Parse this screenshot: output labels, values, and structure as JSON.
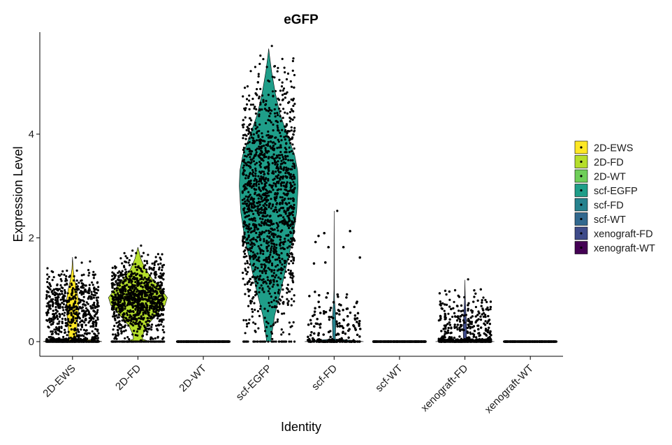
{
  "chart_data": {
    "type": "violin",
    "title": "eGFP",
    "xlabel": "Identity",
    "ylabel": "Expression Level",
    "ylim": [
      -0.28,
      5.9
    ],
    "yticks": [
      0,
      2,
      4
    ],
    "grid": false,
    "legend_position": "right",
    "categories": [
      "2D-EWS",
      "2D-FD",
      "2D-WT",
      "scf-EGFP",
      "scf-FD",
      "scf-WT",
      "xenograft-FD",
      "xenograft-WT"
    ],
    "series": [
      {
        "name": "2D-EWS",
        "color": "#FDE725",
        "max": 1.63,
        "jitter_max": 1.62,
        "zero_fraction": 0.4,
        "violin": {
          "y": [
            0,
            0.02,
            0.06,
            0.2,
            0.4,
            0.6,
            0.8,
            1.0,
            1.2,
            1.4,
            1.63
          ],
          "w": [
            1.0,
            0.85,
            0.12,
            0.14,
            0.17,
            0.2,
            0.2,
            0.15,
            0.07,
            0.02,
            0
          ]
        }
      },
      {
        "name": "2D-FD",
        "color": "#B5DE2B",
        "max": 1.82,
        "jitter_max": 1.85,
        "zero_fraction": 0.12,
        "violin": {
          "y": [
            0,
            0.02,
            0.05,
            0.15,
            0.3,
            0.5,
            0.7,
            0.85,
            1.0,
            1.2,
            1.4,
            1.6,
            1.82
          ],
          "w": [
            0.4,
            0.3,
            0.15,
            0.18,
            0.3,
            0.6,
            0.92,
            1.0,
            0.8,
            0.5,
            0.25,
            0.1,
            0
          ]
        }
      },
      {
        "name": "2D-WT",
        "color": "#6ECE58",
        "max": 0,
        "jitter_max": 0,
        "zero_fraction": 1.0,
        "violin": {
          "y": [
            0,
            0.004
          ],
          "w": [
            0.1,
            0
          ]
        }
      },
      {
        "name": "scf-EGFP",
        "color": "#1F9E89",
        "max": 5.65,
        "jitter_max": 5.7,
        "zero_fraction": 0.02,
        "violin": {
          "y": [
            0,
            0.05,
            0.5,
            1.0,
            1.5,
            2.0,
            2.5,
            3.0,
            3.3,
            3.6,
            4.0,
            4.4,
            4.8,
            5.2,
            5.5,
            5.65
          ],
          "w": [
            0.08,
            0.08,
            0.2,
            0.42,
            0.62,
            0.82,
            0.95,
            1.0,
            0.98,
            0.88,
            0.62,
            0.38,
            0.22,
            0.1,
            0.03,
            0
          ]
        }
      },
      {
        "name": "scf-FD",
        "color": "#26828E",
        "max": 2.52,
        "jitter_max": 2.52,
        "zero_fraction": 0.5,
        "violin": {
          "y": [
            0,
            0.02,
            0.05,
            0.2,
            0.4,
            0.6,
            0.8,
            1.0,
            1.5,
            2.0,
            2.52
          ],
          "w": [
            1.0,
            0.7,
            0.04,
            0.05,
            0.06,
            0.04,
            0.015,
            0.006,
            0.004,
            0.003,
            0
          ]
        }
      },
      {
        "name": "scf-WT",
        "color": "#31688E",
        "max": 0,
        "jitter_max": 0,
        "zero_fraction": 1.0,
        "violin": {
          "y": [
            0,
            0.004
          ],
          "w": [
            0.1,
            0
          ]
        }
      },
      {
        "name": "xenograft-FD",
        "color": "#3E4A89",
        "max": 1.19,
        "jitter_max": 1.2,
        "zero_fraction": 0.5,
        "violin": {
          "y": [
            0,
            0.02,
            0.05,
            0.2,
            0.4,
            0.6,
            0.8,
            1.0,
            1.19
          ],
          "w": [
            1.0,
            0.6,
            0.05,
            0.06,
            0.05,
            0.03,
            0.015,
            0.005,
            0
          ]
        }
      },
      {
        "name": "xenograft-WT",
        "color": "#440154",
        "max": 0,
        "jitter_max": 0,
        "zero_fraction": 1.0,
        "violin": {
          "y": [
            0,
            0.004
          ],
          "w": [
            0.1,
            0
          ]
        }
      }
    ]
  }
}
